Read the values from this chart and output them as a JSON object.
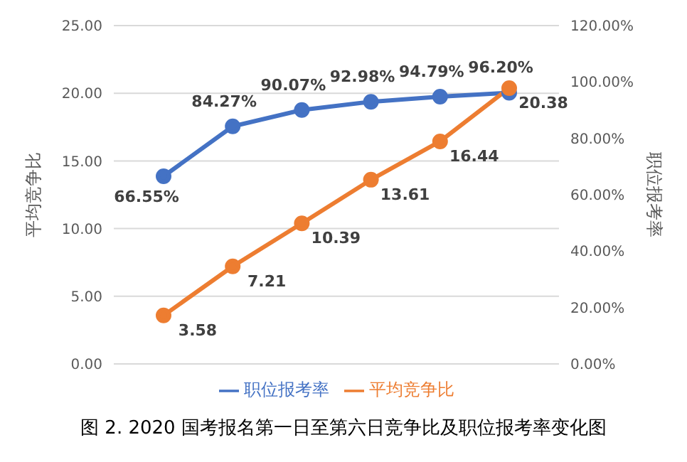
{
  "chart_data": {
    "type": "line",
    "ylabel": "平均竞争比",
    "y2label": "职位报考率",
    "categories": [
      null,
      null,
      null,
      null,
      null,
      null
    ],
    "series": [
      {
        "name": "职位报考率",
        "color": "#4472c4",
        "axis": "y2",
        "values": [
          66.55,
          84.27,
          90.07,
          92.98,
          94.79,
          96.2
        ],
        "value_labels": [
          "66.55%",
          "84.27%",
          "90.07%",
          "92.98%",
          "94.79%",
          "96.20%"
        ]
      },
      {
        "name": "平均竞争比",
        "color": "#ed7d31",
        "values": [
          3.58,
          7.21,
          10.39,
          13.61,
          16.44,
          20.38
        ],
        "value_labels": [
          "3.58",
          "7.21",
          "10.39",
          "13.61",
          "16.44",
          "20.38"
        ]
      }
    ],
    "ylim": [
      0,
      25
    ],
    "yticks": [
      {
        "value": 0,
        "label": "0.00"
      },
      {
        "value": 5,
        "label": "5.00"
      },
      {
        "value": 10,
        "label": "10.00"
      },
      {
        "value": 15,
        "label": "15.00"
      },
      {
        "value": 20,
        "label": "20.00"
      },
      {
        "value": 25,
        "label": "25.00"
      }
    ],
    "y2lim": [
      0,
      120
    ],
    "y2ticks": [
      {
        "value": 0,
        "label": "0.00%"
      },
      {
        "value": 20,
        "label": "20.00%"
      },
      {
        "value": 40,
        "label": "40.00%"
      },
      {
        "value": 60,
        "label": "60.00%"
      },
      {
        "value": 80,
        "label": "80.00%"
      },
      {
        "value": 100,
        "label": "100.00%"
      },
      {
        "value": 120,
        "label": "120.00%"
      }
    ],
    "grid": "y",
    "legend": "bottom",
    "marker": "circle",
    "line_style": "solid",
    "annotations": [
      "图 2. 2020 国考报名第一日至第六日竞争比及职位报考率变化图"
    ]
  }
}
